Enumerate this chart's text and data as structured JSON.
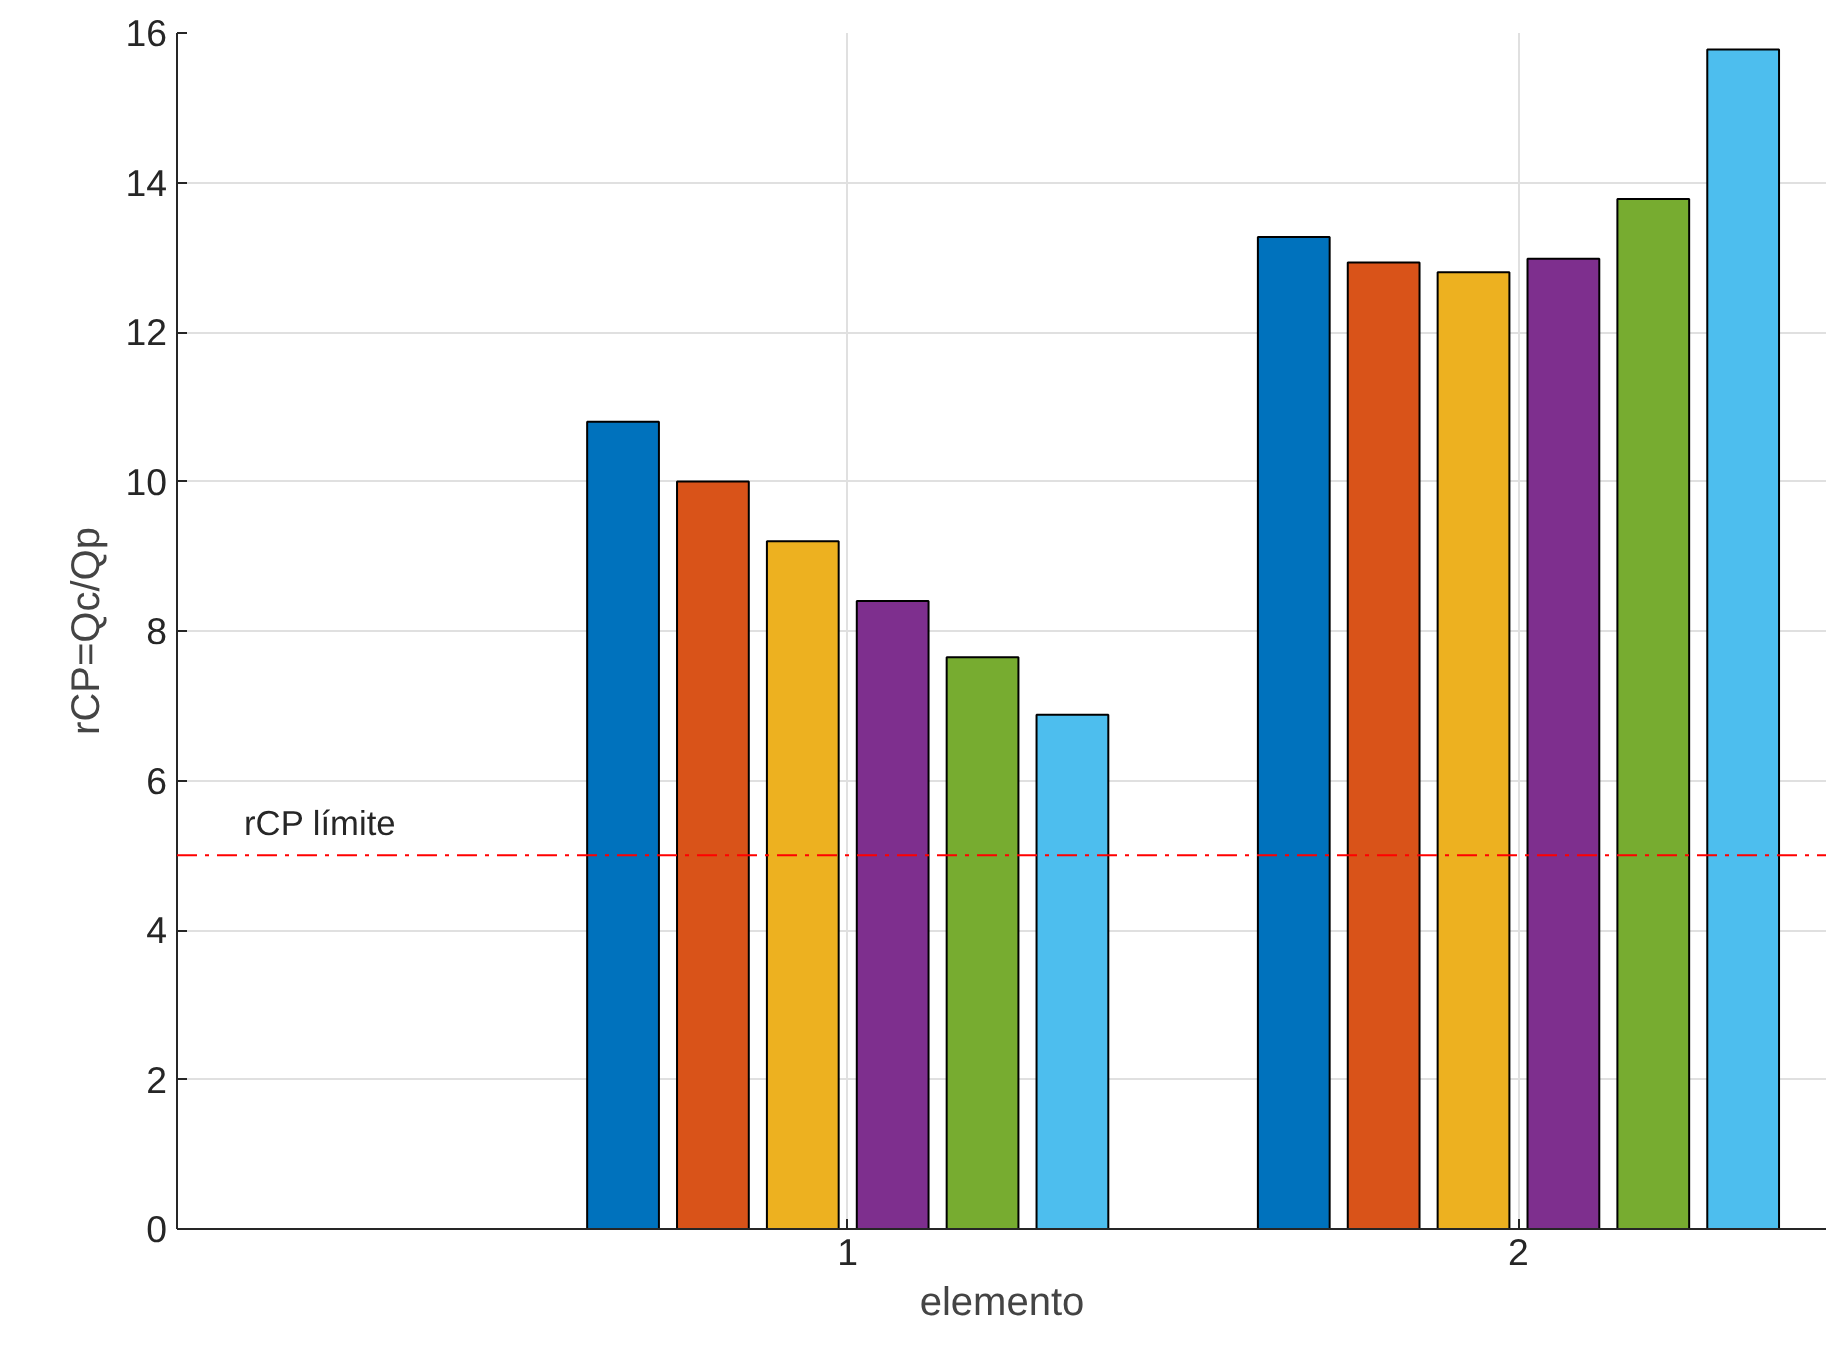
{
  "chart_data": {
    "type": "bar",
    "xlabel": "elemento",
    "ylabel": "rCP=Qc/Qp",
    "x": [
      1,
      2
    ],
    "xlim": [
      0,
      2.46
    ],
    "xticks": [
      1,
      2
    ],
    "ylim": [
      0,
      16
    ],
    "yticks": [
      0,
      2,
      4,
      6,
      8,
      10,
      12,
      14,
      16
    ],
    "grid": true,
    "series": [
      {
        "color": "#0072bd",
        "values": [
          10.8,
          13.27
        ]
      },
      {
        "color": "#d95319",
        "values": [
          10.0,
          12.93
        ]
      },
      {
        "color": "#edb120",
        "values": [
          9.2,
          12.8
        ]
      },
      {
        "color": "#7e2f8e",
        "values": [
          8.4,
          12.98
        ]
      },
      {
        "color": "#77ac30",
        "values": [
          7.65,
          13.78
        ]
      },
      {
        "color": "#4dbeee",
        "values": [
          6.88,
          15.78
        ]
      }
    ],
    "ref_lines": [
      {
        "axis": "y",
        "value": 5,
        "label": "rCP límite",
        "color": "#ff0000",
        "line_style": "dashdot"
      }
    ]
  }
}
